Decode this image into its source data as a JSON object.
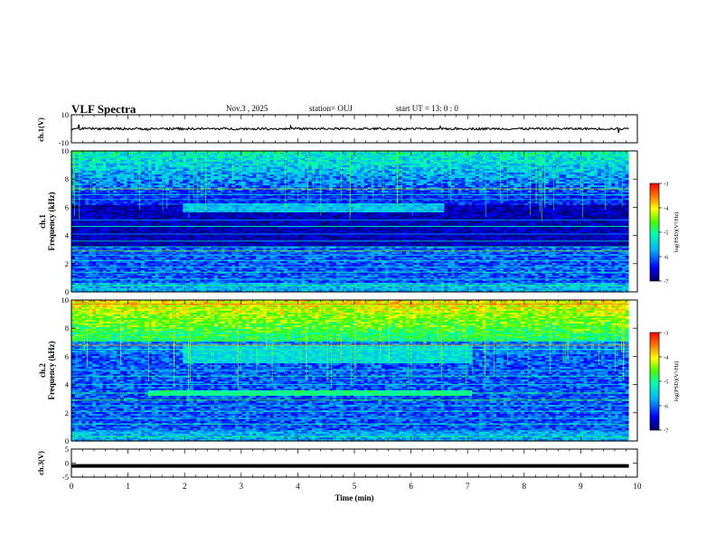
{
  "header": {
    "title": "VLF Spectra",
    "date": "Nov.3  , 2025",
    "station": "station= OUJ",
    "start": "start  UT =   13: 0  : 0"
  },
  "chart_data": [
    {
      "type": "line",
      "panel": "ch1_waveform",
      "ylabel": "ch.1(V)",
      "ylim": [
        -10,
        10
      ],
      "yticks": [
        "10",
        "-10"
      ],
      "xlim": [
        0,
        10
      ],
      "series": [
        {
          "values_note_free": true,
          "baseline": 0,
          "color": "#000000"
        }
      ]
    },
    {
      "type": "heatmap",
      "panel": "ch1_spectrogram",
      "ylabel_line1": "ch.1",
      "ylabel_line2": "Frequency  (kHz)",
      "ylim": [
        0,
        10
      ],
      "yticks": [
        "0",
        "2",
        "4",
        "6",
        "8",
        "10"
      ],
      "xlim": [
        0,
        9.85
      ],
      "colorbar": {
        "label": "log(PSD)(V²/Hz)",
        "range": [
          -7,
          -3
        ],
        "ticks": [
          "-3",
          "-4",
          "-5",
          "-6",
          "-7"
        ]
      },
      "features": [
        {
          "kind": "quiet_band",
          "f_khz": [
            3.2,
            6.2
          ],
          "level": -6.7
        },
        {
          "kind": "emission_band",
          "t_min": [
            2.0,
            6.6
          ],
          "f_khz": [
            5.7,
            6.3
          ],
          "level": -5.6
        },
        {
          "kind": "broadband_upper",
          "f_khz": [
            7.0,
            10.0
          ],
          "level": -5.8
        }
      ]
    },
    {
      "type": "heatmap",
      "panel": "ch2_spectrogram",
      "ylabel_line1": "ch.2",
      "ylabel_line2": "Frequency  (kHz)",
      "ylim": [
        0,
        10
      ],
      "yticks": [
        "0",
        "2",
        "4",
        "6",
        "8",
        "10"
      ],
      "xlim": [
        0,
        9.85
      ],
      "colorbar": {
        "label": "log(PSD)(V²/Hz)",
        "range": [
          -7,
          -3
        ],
        "ticks": [
          "-3",
          "-4",
          "-5",
          "-6",
          "-7"
        ]
      },
      "features": [
        {
          "kind": "broadband_upper",
          "f_khz": [
            7.0,
            10.0
          ],
          "level": -4.6
        },
        {
          "kind": "emission_band",
          "t_min": [
            1.35,
            7.1
          ],
          "f_khz": [
            3.2,
            3.6
          ],
          "level": -5.0
        },
        {
          "kind": "emission_band",
          "t_min": [
            2.0,
            7.1
          ],
          "f_khz": [
            5.5,
            6.8
          ],
          "level": -5.4
        }
      ]
    },
    {
      "type": "line",
      "panel": "ch3_waveform",
      "ylabel": "ch.3(V)",
      "ylim": [
        -5,
        5
      ],
      "yticks": [
        "5",
        "0",
        "-5"
      ],
      "xlim": [
        0,
        10
      ],
      "series": [
        {
          "constant": -1,
          "color": "#000000"
        }
      ]
    }
  ],
  "xaxis": {
    "label": "Time  (min)",
    "ticks": [
      "0",
      "1",
      "2",
      "3",
      "4",
      "5",
      "6",
      "7",
      "8",
      "9",
      "10"
    ]
  },
  "colors": {
    "background": "#ffffff",
    "axis": "#000000"
  }
}
